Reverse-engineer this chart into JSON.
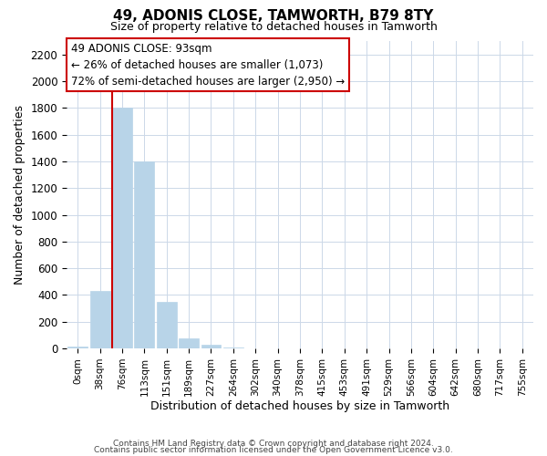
{
  "title": "49, ADONIS CLOSE, TAMWORTH, B79 8TY",
  "subtitle": "Size of property relative to detached houses in Tamworth",
  "xlabel": "Distribution of detached houses by size in Tamworth",
  "ylabel": "Number of detached properties",
  "bar_labels": [
    "0sqm",
    "38sqm",
    "76sqm",
    "113sqm",
    "151sqm",
    "189sqm",
    "227sqm",
    "264sqm",
    "302sqm",
    "340sqm",
    "378sqm",
    "415sqm",
    "453sqm",
    "491sqm",
    "529sqm",
    "566sqm",
    "604sqm",
    "642sqm",
    "680sqm",
    "717sqm",
    "755sqm"
  ],
  "bar_values": [
    15,
    430,
    1800,
    1400,
    350,
    75,
    25,
    5,
    0,
    0,
    0,
    0,
    0,
    0,
    0,
    0,
    0,
    0,
    0,
    0,
    0
  ],
  "bar_color": "#b8d4e8",
  "bar_edge_color": "#b8d4e8",
  "vline_x_index": 2,
  "vline_color": "#cc0000",
  "ylim": [
    0,
    2300
  ],
  "yticks": [
    0,
    200,
    400,
    600,
    800,
    1000,
    1200,
    1400,
    1600,
    1800,
    2000,
    2200
  ],
  "annotation_title": "49 ADONIS CLOSE: 93sqm",
  "annotation_line1": "← 26% of detached houses are smaller (1,073)",
  "annotation_line2": "72% of semi-detached houses are larger (2,950) →",
  "footer_line1": "Contains HM Land Registry data © Crown copyright and database right 2024.",
  "footer_line2": "Contains public sector information licensed under the Open Government Licence v3.0.",
  "background_color": "#ffffff",
  "grid_color": "#ccd8e8",
  "ann_box_edge_color": "#cc0000"
}
